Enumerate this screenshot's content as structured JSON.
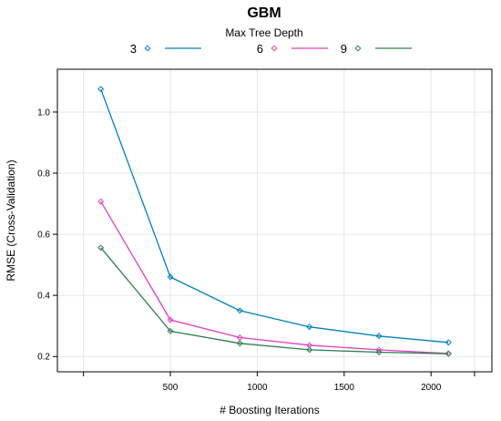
{
  "chart_data": {
    "type": "line",
    "title": "GBM",
    "legend_title": "Max Tree Depth",
    "legend_position": "top",
    "xlabel": "# Boosting Iterations",
    "ylabel": "RMSE (Cross-Validation)",
    "xlim": [
      -150,
      2350
    ],
    "ylim": [
      0.15,
      1.14
    ],
    "x_ticks": [
      500,
      1000,
      1500,
      2000
    ],
    "x_tick_labels": [
      "500",
      "1000",
      "1500",
      "2000"
    ],
    "y_ticks": [
      0.2,
      0.4,
      0.6,
      0.8,
      1.0
    ],
    "y_tick_labels": [
      "0.2",
      "0.4",
      "0.6",
      "0.8",
      "1.0"
    ],
    "grid": true,
    "x": [
      100,
      500,
      900,
      1300,
      1700,
      2100
    ],
    "series": [
      {
        "name": "3",
        "color": "#0080c0",
        "marker": "diamond-open",
        "values": [
          1.075,
          0.46,
          0.35,
          0.297,
          0.267,
          0.246
        ]
      },
      {
        "name": "6",
        "color": "#e040c0",
        "marker": "diamond-open",
        "values": [
          0.707,
          0.32,
          0.262,
          0.237,
          0.222,
          0.21
        ]
      },
      {
        "name": "9",
        "color": "#2e7d4f",
        "marker": "diamond-open",
        "values": [
          0.556,
          0.283,
          0.243,
          0.222,
          0.214,
          0.209
        ]
      }
    ]
  }
}
